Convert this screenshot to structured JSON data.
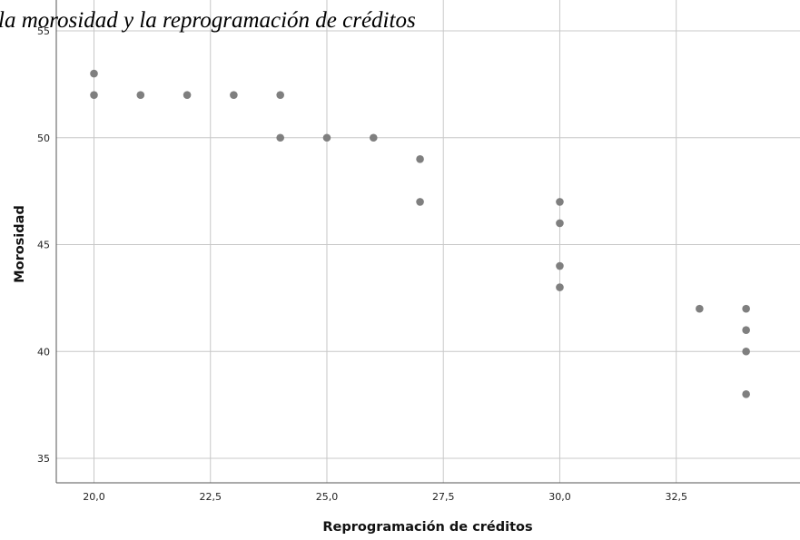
{
  "chart_data": {
    "type": "scatter",
    "title": "la morosidad y la reprogramación de créditos",
    "xlabel": "Reprogramación de créditos",
    "ylabel": "Morosidad",
    "xlim": [
      19.2,
      34.5
    ],
    "ylim": [
      34.2,
      55.3
    ],
    "xticks": [
      "20,0",
      "22,5",
      "25,0",
      "27,5",
      "30,0",
      "32,5"
    ],
    "yticks": [
      "35",
      "40",
      "45",
      "50",
      "55"
    ],
    "grid": true,
    "point_color": "#7f7f7f",
    "grid_color": "#c8c8c8",
    "points": [
      {
        "x": 20,
        "y": 53
      },
      {
        "x": 20,
        "y": 52
      },
      {
        "x": 21,
        "y": 52
      },
      {
        "x": 22,
        "y": 52
      },
      {
        "x": 23,
        "y": 52
      },
      {
        "x": 24,
        "y": 52
      },
      {
        "x": 24,
        "y": 50
      },
      {
        "x": 25,
        "y": 50
      },
      {
        "x": 26,
        "y": 50
      },
      {
        "x": 27,
        "y": 49
      },
      {
        "x": 27,
        "y": 47
      },
      {
        "x": 30,
        "y": 47
      },
      {
        "x": 30,
        "y": 46
      },
      {
        "x": 30,
        "y": 44
      },
      {
        "x": 30,
        "y": 43
      },
      {
        "x": 33,
        "y": 42
      },
      {
        "x": 34,
        "y": 42
      },
      {
        "x": 34,
        "y": 41
      },
      {
        "x": 34,
        "y": 40
      },
      {
        "x": 34,
        "y": 38
      }
    ]
  }
}
